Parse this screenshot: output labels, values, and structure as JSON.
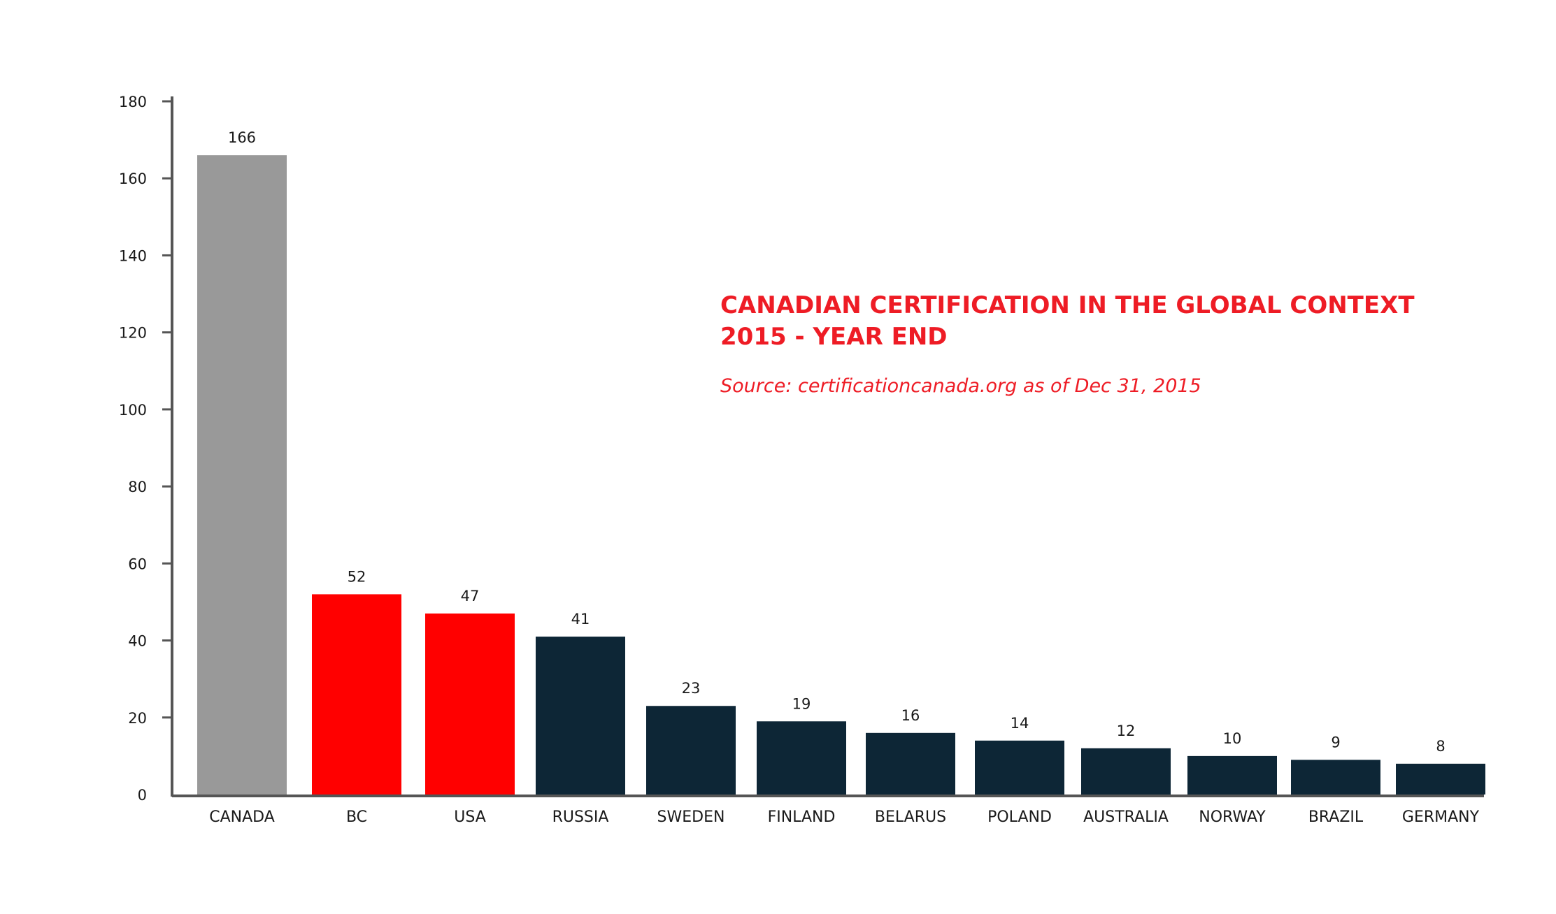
{
  "chart_data": {
    "type": "bar",
    "title": "CANADIAN CERTIFICATION IN THE GLOBAL CONTEXT",
    "subtitle": "2015 - YEAR END",
    "source": "Source: certificationcanada.org as of Dec 31, 2015",
    "xlabel": "",
    "ylabel": "",
    "ylim": [
      0,
      180
    ],
    "yticks": [
      0,
      20,
      40,
      60,
      80,
      100,
      120,
      140,
      160,
      180
    ],
    "grid": false,
    "categories": [
      "CANADA",
      "BC",
      "USA",
      "RUSSIA",
      "SWEDEN",
      "FINLAND",
      "BELARUS",
      "POLAND",
      "AUSTRALIA",
      "NORWAY",
      "BRAZIL",
      "GERMANY"
    ],
    "values": [
      166,
      52,
      47,
      41,
      23,
      19,
      16,
      14,
      12,
      10,
      9,
      8
    ],
    "data_labels": [
      "166",
      "52",
      "47",
      "41",
      "23",
      "19",
      "16",
      "14",
      "12",
      "10",
      "9",
      "8"
    ],
    "bar_colors": [
      "#999999",
      "#ff0000",
      "#ff0000",
      "#0d2636",
      "#0d2636",
      "#0d2636",
      "#0d2636",
      "#0d2636",
      "#0d2636",
      "#0d2636",
      "#0d2636",
      "#0d2636"
    ],
    "title_color": "#ee1c25",
    "axis_color": "#555555"
  }
}
